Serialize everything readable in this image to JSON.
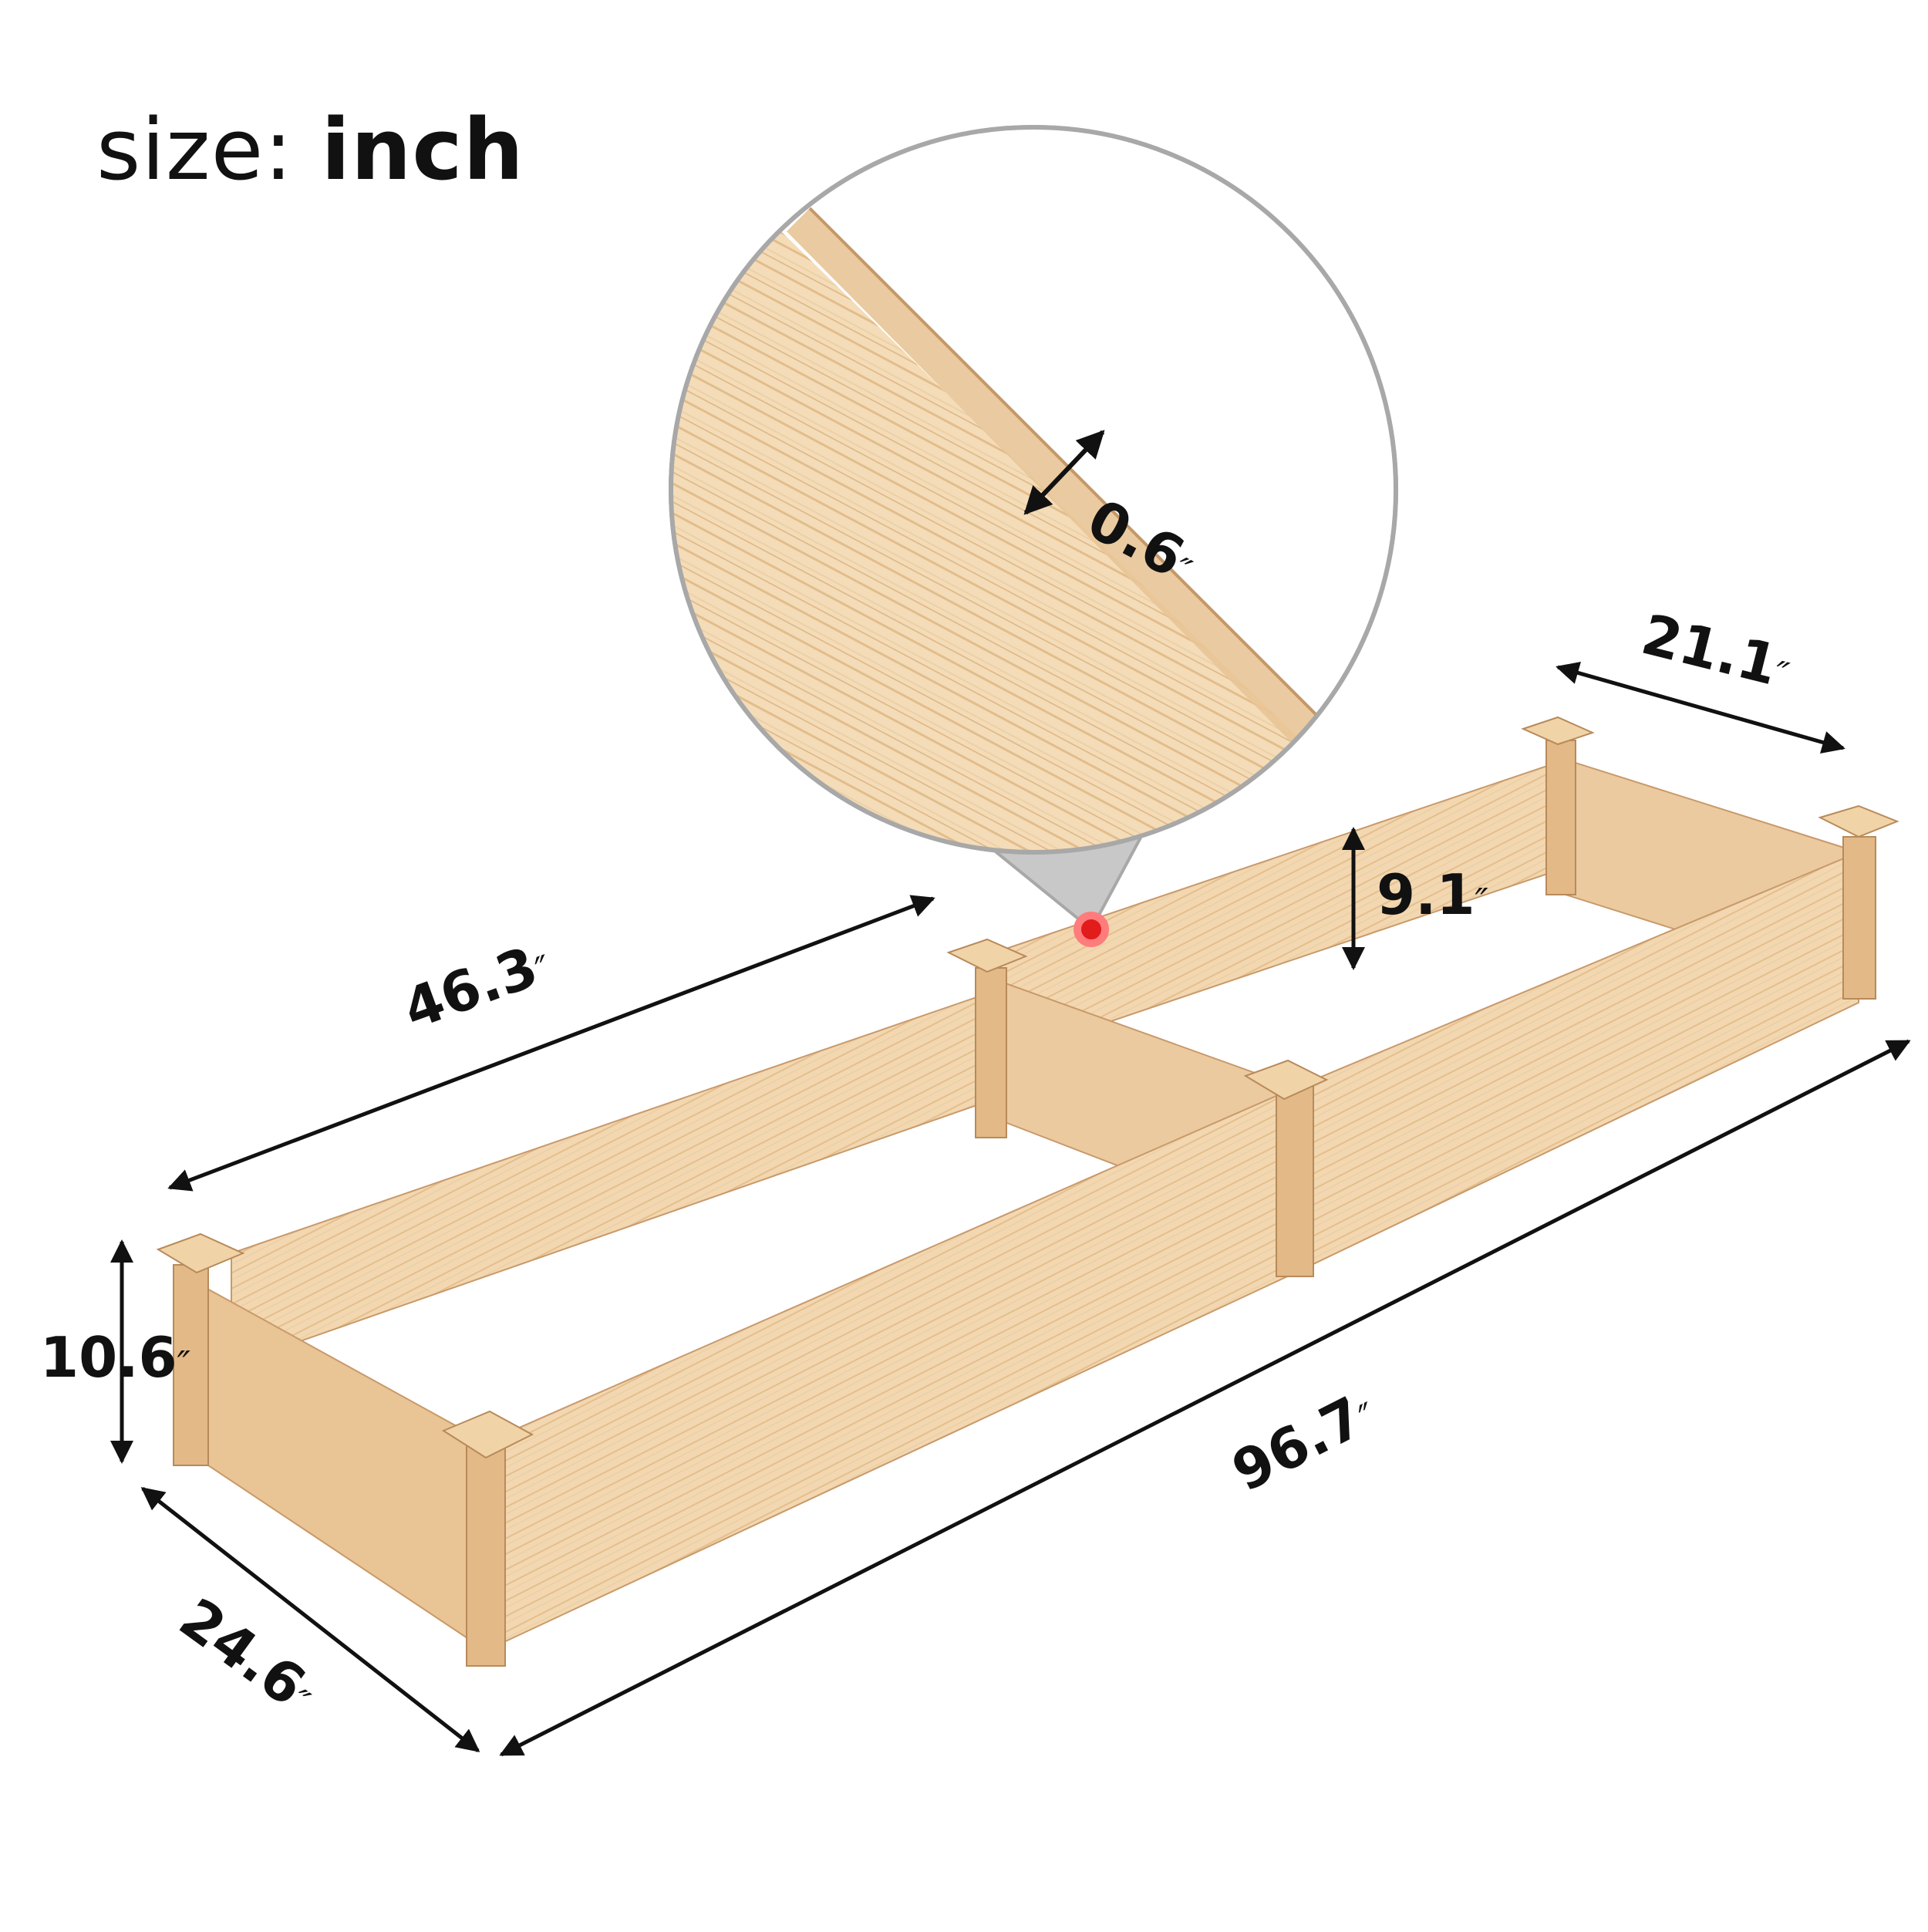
{
  "title": {
    "prefix": "size:",
    "unit": "inch"
  },
  "inch_mark": "″",
  "dimensions": {
    "thickness": "0.6",
    "width_top": "21.1",
    "inner_height": "9.1",
    "section_length": "46.3",
    "total_length": "96.7",
    "height": "10.6",
    "width": "24.6"
  },
  "colors": {
    "wood_light": "#f2d7b0",
    "wood_mid": "#e6c191",
    "wood_dark": "#c9996a",
    "callout_border": "#a8a8a8",
    "marker": "#e21b1b"
  }
}
